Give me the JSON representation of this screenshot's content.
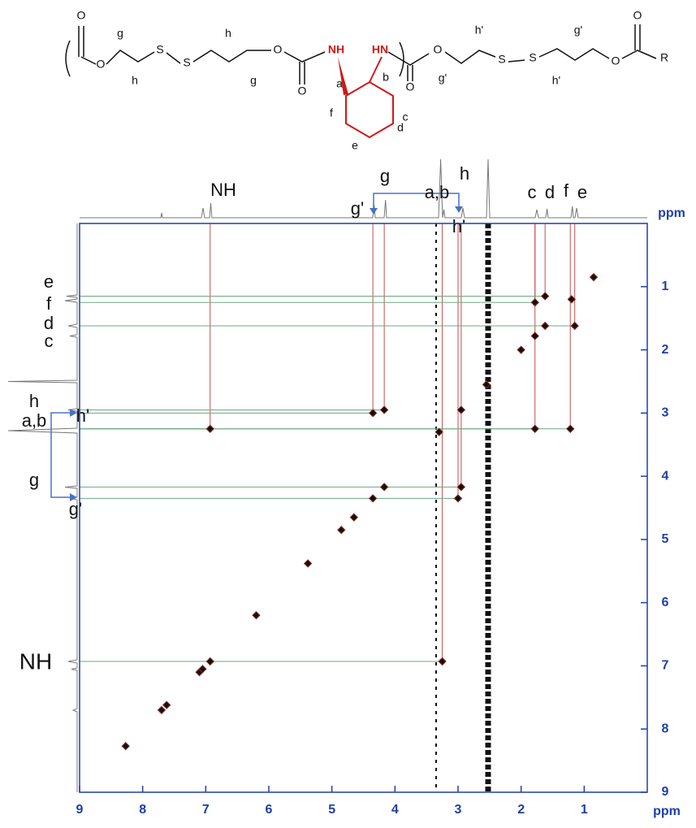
{
  "structure": {
    "atoms": [
      "O",
      "O",
      "S",
      "S",
      "O",
      "O",
      "NH",
      "HN",
      "O",
      "O",
      "S",
      "S",
      "O",
      "O"
    ],
    "labels": [
      "g",
      "h",
      "h",
      "g",
      "a",
      "b",
      "c",
      "d",
      "e",
      "f",
      "h'",
      "g'",
      "g'",
      "h'",
      "R"
    ]
  },
  "chart_data": {
    "type": "scatter",
    "x_label": "ppm",
    "y_label": "ppm",
    "xlim": [
      9,
      0
    ],
    "ylim": [
      0,
      9
    ],
    "xticks": [
      9,
      8,
      7,
      6,
      5,
      4,
      3,
      2,
      1
    ],
    "yticks": [
      1,
      2,
      3,
      4,
      5,
      6,
      7,
      8,
      9
    ],
    "top_labels": [
      "NH",
      "g",
      "h",
      "g'",
      "a,b",
      "h'",
      "c",
      "d",
      "f",
      "e"
    ],
    "left_labels": [
      "e",
      "f",
      "d",
      "c",
      "h",
      "a,b",
      "h'",
      "g",
      "g'",
      "NH"
    ],
    "diagonal_peaks": [
      8.27,
      7.7,
      7.62,
      7.1,
      7.05,
      6.93,
      6.2,
      5.38,
      4.85,
      4.65,
      4.35,
      4.17,
      3.3,
      2.95,
      2.55,
      2.0,
      1.78,
      1.62,
      1.2,
      0.85
    ],
    "cross_peaks": {
      "x": [
        6.93,
        3.25,
        4.35,
        3.0,
        4.17,
        2.95,
        1.78,
        1.22,
        1.78,
        1.62,
        1.15
      ],
      "y": [
        3.25,
        6.93,
        3.0,
        4.35,
        2.95,
        4.17,
        3.25,
        3.25,
        1.25,
        1.15,
        1.62
      ]
    },
    "colors": {
      "peak": "#111111",
      "peak_edge": "#8b2a22",
      "vertical_guide": "#c0504d",
      "horizontal_guide": "#6aa97f",
      "axis": "#1f3fa8"
    }
  }
}
